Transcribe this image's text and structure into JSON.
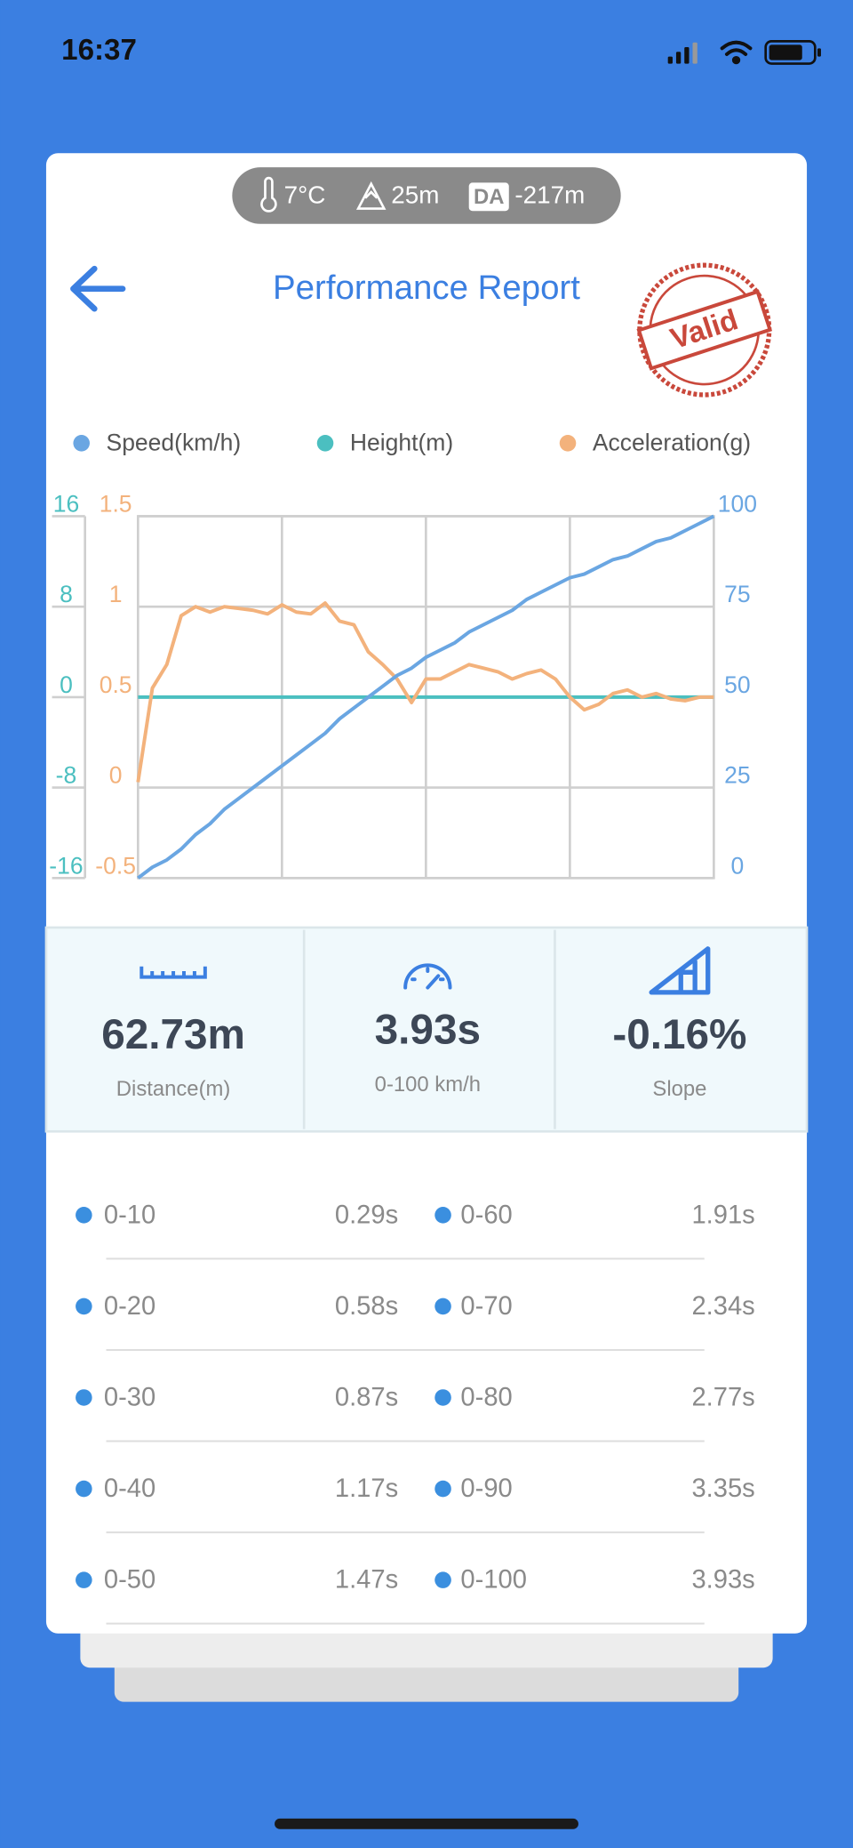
{
  "status_bar": {
    "time": "16:37"
  },
  "conditions": {
    "temperature": "7°C",
    "altitude": "25m",
    "da_label": "DA",
    "density_altitude": "-217m"
  },
  "header": {
    "title": "Performance Report",
    "stamp": "Valid"
  },
  "chart_data": {
    "type": "line",
    "series": [
      {
        "name": "Speed(km/h)",
        "color": "#6aa6e2",
        "axis": "y",
        "values": [
          0,
          3,
          5,
          8,
          12,
          15,
          19,
          22,
          25,
          28,
          31,
          34,
          37,
          40,
          44,
          47,
          50,
          53,
          56,
          58,
          61,
          63,
          65,
          68,
          70,
          72,
          74,
          77,
          79,
          81,
          83,
          84,
          86,
          88,
          89,
          91,
          93,
          94,
          96,
          98,
          100
        ]
      },
      {
        "name": "Height(m)",
        "color": "#4bbfc0",
        "axis": "y3",
        "values": [
          0,
          0,
          0,
          0,
          0,
          0,
          0,
          0,
          0,
          0,
          0,
          0,
          0,
          0,
          0,
          0,
          0,
          0,
          0,
          0,
          0,
          0,
          0,
          0,
          0,
          0,
          0,
          0,
          0,
          0,
          0,
          0,
          0,
          0,
          0,
          0,
          0,
          0,
          0,
          0,
          0
        ]
      },
      {
        "name": "Acceleration(g)",
        "color": "#f3b27c",
        "axis": "y2",
        "values": [
          0.03,
          0.55,
          0.68,
          0.95,
          1.0,
          0.97,
          1.0,
          0.99,
          0.98,
          0.96,
          1.01,
          0.97,
          0.96,
          1.02,
          0.92,
          0.9,
          0.75,
          0.68,
          0.6,
          0.47,
          0.6,
          0.6,
          0.64,
          0.68,
          0.66,
          0.64,
          0.6,
          0.63,
          0.65,
          0.6,
          0.5,
          0.43,
          0.46,
          0.52,
          0.54,
          0.5,
          0.52,
          0.49,
          0.48,
          0.5,
          0.5
        ]
      }
    ],
    "ylim": [
      0,
      100
    ],
    "yticks": [
      0,
      25,
      50,
      75,
      100
    ],
    "y2lim": [
      -0.5,
      1.5
    ],
    "y2ticks": [
      -0.5,
      0,
      0.5,
      1,
      1.5
    ],
    "y3lim": [
      -16,
      16
    ],
    "y3ticks": [
      -16,
      -8,
      0,
      8,
      16
    ],
    "grid": true
  },
  "stats": [
    {
      "value": "62.73m",
      "label": "Distance(m)"
    },
    {
      "value": "3.93s",
      "label": "0-100 km/h"
    },
    {
      "value": "-0.16%",
      "label": "Slope"
    }
  ],
  "splits": {
    "rows": [
      {
        "left": {
          "label": "0-10",
          "time": "0.29s"
        },
        "right": {
          "label": "0-60",
          "time": "1.91s"
        }
      },
      {
        "left": {
          "label": "0-20",
          "time": "0.58s"
        },
        "right": {
          "label": "0-70",
          "time": "2.34s"
        }
      },
      {
        "left": {
          "label": "0-30",
          "time": "0.87s"
        },
        "right": {
          "label": "0-80",
          "time": "2.77s"
        }
      },
      {
        "left": {
          "label": "0-40",
          "time": "1.17s"
        },
        "right": {
          "label": "0-90",
          "time": "3.35s"
        }
      },
      {
        "left": {
          "label": "0-50",
          "time": "1.47s"
        },
        "right": {
          "label": "0-100",
          "time": "3.93s"
        }
      }
    ]
  }
}
